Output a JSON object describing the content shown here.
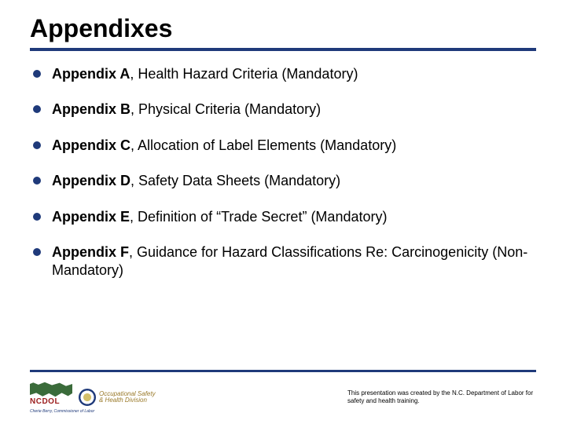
{
  "title": "Appendixes",
  "items": [
    {
      "bold": "Appendix A",
      "rest": ", Health Hazard Criteria (Mandatory)"
    },
    {
      "bold": "Appendix B",
      "rest": ", Physical Criteria (Mandatory)"
    },
    {
      "bold": "Appendix C",
      "rest": ", Allocation of Label Elements (Mandatory)"
    },
    {
      "bold": "Appendix D",
      "rest": ", Safety Data Sheets (Mandatory)"
    },
    {
      "bold": "Appendix E",
      "rest": ", Definition of “Trade Secret” (Mandatory)"
    },
    {
      "bold": "Appendix F",
      "rest": ", Guidance for Hazard Classifications Re: Carcinogenicity (Non-Mandatory)"
    }
  ],
  "logo": {
    "ncdol": "NCDOL",
    "sub": "N.C. Department of Labor",
    "commish": "Cherie Berry, Commissioner of Labor",
    "osh1": "Occupational Safety",
    "osh2": "& Health Division"
  },
  "footnote": "This presentation was created by the N.C. Department of Labor for safety and health training.",
  "colors": {
    "accent": "#1f3a7a",
    "text": "#000000",
    "bg": "#ffffff"
  }
}
